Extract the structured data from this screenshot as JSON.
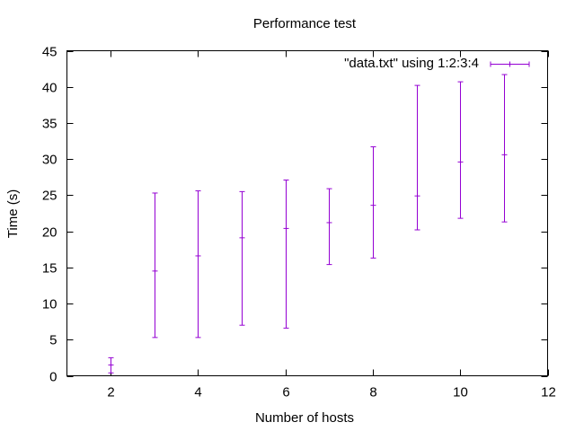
{
  "chart_data": {
    "type": "errorbar",
    "title": "Performance test",
    "xlabel": "Number of hosts",
    "ylabel": "Time (s)",
    "xlim": [
      1,
      12
    ],
    "ylim": [
      0,
      45
    ],
    "xticks": [
      2,
      4,
      6,
      8,
      10,
      12
    ],
    "yticks": [
      0,
      5,
      10,
      15,
      20,
      25,
      30,
      35,
      40,
      45
    ],
    "grid": false,
    "legend_position": "top-right",
    "series": [
      {
        "name": "\"data.txt\" using 1:2:3:4",
        "color": "#9400d3",
        "points": [
          {
            "x": 2,
            "y": 1.5,
            "ylow": 0.4,
            "yhigh": 2.5
          },
          {
            "x": 3,
            "y": 14.5,
            "ylow": 5.3,
            "yhigh": 25.3
          },
          {
            "x": 4,
            "y": 16.6,
            "ylow": 5.3,
            "yhigh": 25.6
          },
          {
            "x": 5,
            "y": 19.1,
            "ylow": 7.0,
            "yhigh": 25.5
          },
          {
            "x": 6,
            "y": 20.4,
            "ylow": 6.6,
            "yhigh": 27.1
          },
          {
            "x": 7,
            "y": 21.2,
            "ylow": 15.4,
            "yhigh": 25.9
          },
          {
            "x": 8,
            "y": 23.6,
            "ylow": 16.3,
            "yhigh": 31.7
          },
          {
            "x": 9,
            "y": 24.9,
            "ylow": 20.2,
            "yhigh": 40.2
          },
          {
            "x": 10,
            "y": 29.6,
            "ylow": 21.8,
            "yhigh": 40.7
          },
          {
            "x": 11,
            "y": 30.6,
            "ylow": 21.3,
            "yhigh": 41.7
          }
        ]
      }
    ]
  }
}
